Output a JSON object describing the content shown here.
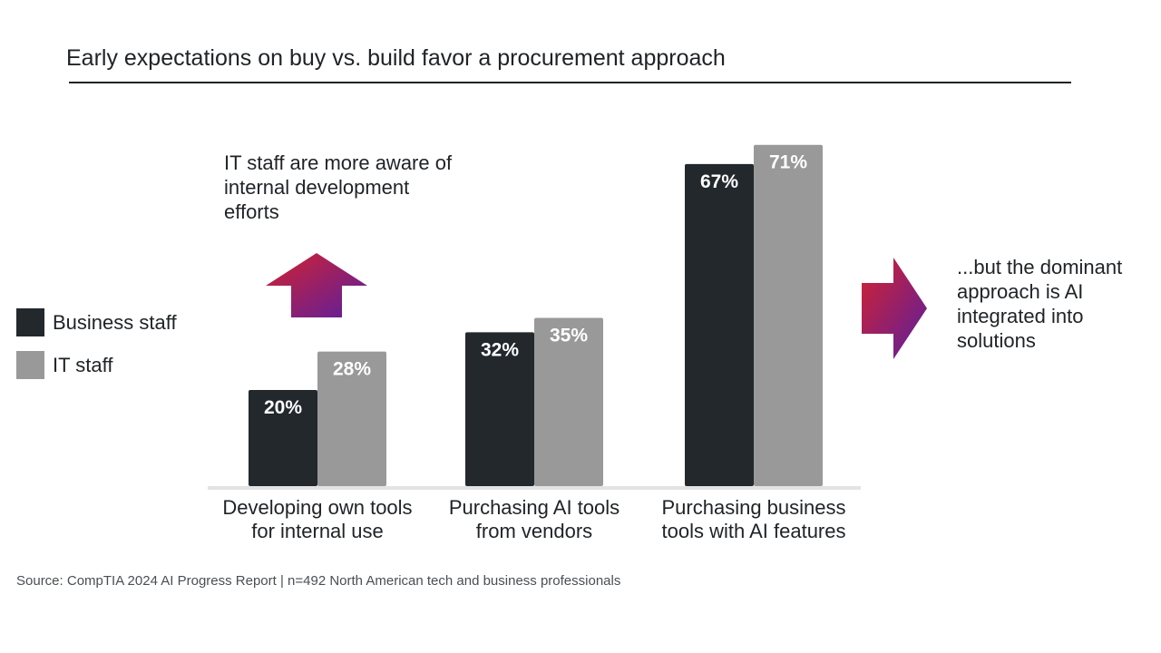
{
  "title": "Early expectations on buy vs. build favor a procurement approach",
  "source": "Source: CompTIA 2024 AI Progress Report | n=492 North American tech and business professionals",
  "callouts": {
    "left": "IT staff are more aware of internal development efforts",
    "right": "...but the dominant approach is AI integrated into solutions"
  },
  "colors": {
    "business": "#22282c",
    "it": "#999999",
    "baseline": "#e3e3e3",
    "arrow_start": "#d4222e",
    "arrow_end": "#5a1fa0"
  },
  "chart_data": {
    "type": "bar",
    "categories": [
      "Developing own tools for internal use",
      "Purchasing AI tools from vendors",
      "Purchasing business tools with AI features"
    ],
    "category_lines": [
      [
        "Developing own tools",
        "for internal use"
      ],
      [
        "Purchasing AI tools",
        "from vendors"
      ],
      [
        "Purchasing business",
        "tools with AI features"
      ]
    ],
    "series": [
      {
        "name": "Business staff",
        "values": [
          20,
          32,
          67
        ],
        "labels": [
          "20%",
          "32%",
          "67%"
        ]
      },
      {
        "name": "IT staff",
        "values": [
          28,
          35,
          71
        ],
        "labels": [
          "28%",
          "35%",
          "71%"
        ]
      }
    ],
    "ylim": [
      0,
      100
    ],
    "grid": false,
    "legend_position": "left"
  }
}
